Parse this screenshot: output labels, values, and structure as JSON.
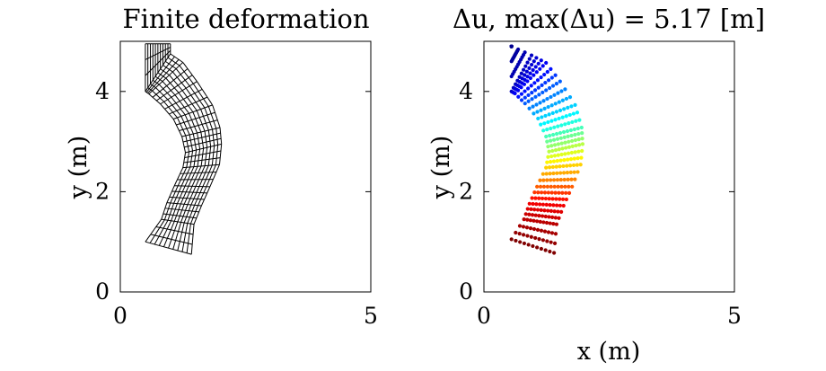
{
  "chart_data": [
    {
      "type": "line",
      "title": "Finite deformation",
      "xlabel": "",
      "ylabel": "y (m)",
      "xlim": [
        0,
        5
      ],
      "ylim": [
        0,
        5
      ],
      "xticks": [
        0,
        5
      ],
      "yticks": [
        0,
        2,
        4
      ],
      "xtick_labels": [
        "0",
        "5"
      ],
      "ytick_labels": [
        "0",
        "2",
        "4"
      ],
      "grid": false,
      "style": "wireframe mesh",
      "mesh": {
        "radial_lines": 11,
        "arc_lines": 34,
        "inner_boundary_x": [
          0.5,
          0.5,
          0.57,
          0.8,
          1.06,
          1.23,
          1.3,
          1.25,
          1.08,
          0.93,
          0.82,
          0.5
        ],
        "inner_boundary_y": [
          4.95,
          4.0,
          3.95,
          3.75,
          3.45,
          3.1,
          2.78,
          2.48,
          2.12,
          1.78,
          1.45,
          1.0
        ],
        "outer_boundary_x": [
          1.0,
          1.0,
          1.25,
          1.53,
          1.84,
          1.99,
          2.02,
          1.98,
          1.79,
          1.62,
          1.47,
          1.42
        ],
        "outer_boundary_y": [
          4.95,
          4.75,
          4.58,
          4.2,
          3.73,
          3.28,
          2.95,
          2.54,
          2.1,
          1.72,
          1.35,
          0.75
        ]
      }
    },
    {
      "type": "scatter",
      "title": "Δu, max(Δu) = 5.17 [m]",
      "xlabel": "x (m)",
      "ylabel": "y (m)",
      "xlim": [
        0,
        5
      ],
      "ylim": [
        0,
        5
      ],
      "xticks": [
        0,
        5
      ],
      "yticks": [
        0,
        2,
        4
      ],
      "xtick_labels": [
        "0",
        "5"
      ],
      "ytick_labels": [
        "0",
        "2",
        "4"
      ],
      "grid": false,
      "colormap": "jet",
      "color_value": "Δu",
      "color_range": [
        0,
        5.17
      ],
      "colormap_colors": [
        "#00008f",
        "#0000ff",
        "#00ffff",
        "#ffff00",
        "#ff0000",
        "#800000"
      ],
      "point_field": {
        "radial_points": 11,
        "arc_points": 34,
        "inner_boundary_x": [
          0.55,
          0.55,
          0.62,
          0.82,
          1.08,
          1.24,
          1.3,
          1.24,
          1.06,
          0.91,
          0.8,
          0.55
        ],
        "inner_boundary_y": [
          4.9,
          4.0,
          3.96,
          3.76,
          3.46,
          3.1,
          2.8,
          2.48,
          2.1,
          1.76,
          1.45,
          1.05
        ],
        "outer_boundary_x": [
          0.55,
          0.95,
          1.24,
          1.52,
          1.82,
          1.95,
          1.97,
          1.93,
          1.76,
          1.59,
          1.45,
          1.4
        ],
        "outer_boundary_y": [
          4.9,
          4.72,
          4.57,
          4.2,
          3.73,
          3.28,
          2.95,
          2.54,
          2.1,
          1.72,
          1.35,
          0.78
        ]
      }
    }
  ]
}
